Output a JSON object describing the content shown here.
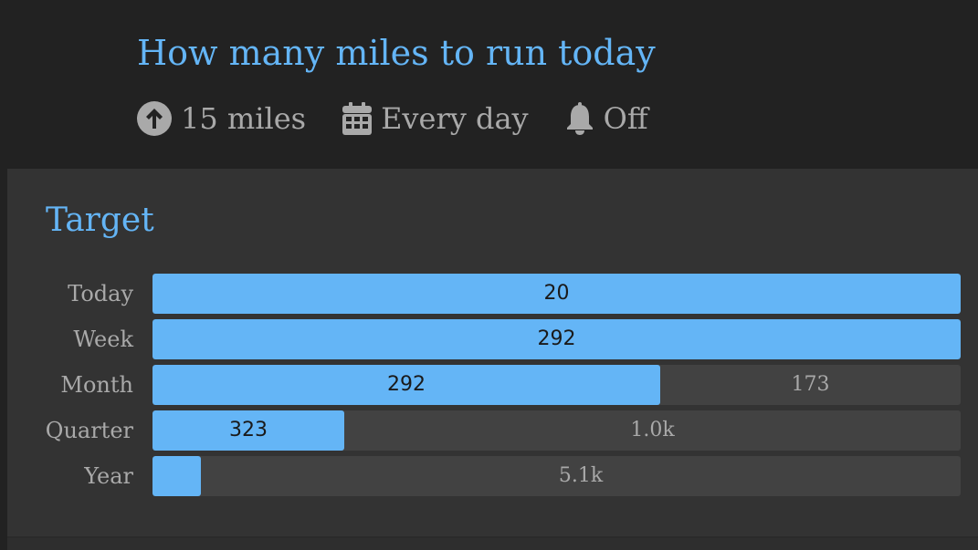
{
  "header": {
    "title": "How many miles to run today",
    "meta": [
      {
        "icon": "arrow-up-circle-icon",
        "text": "15 miles"
      },
      {
        "icon": "calendar-icon",
        "text": "Every day"
      },
      {
        "icon": "bell-icon",
        "text": "Off"
      }
    ]
  },
  "target": {
    "title": "Target",
    "rows": [
      {
        "label": "Today",
        "value": "20",
        "remaining": "",
        "progress": 1.0
      },
      {
        "label": "Week",
        "value": "292",
        "remaining": "",
        "progress": 1.0
      },
      {
        "label": "Month",
        "value": "292",
        "remaining": "173",
        "progress": 0.628
      },
      {
        "label": "Quarter",
        "value": "323",
        "remaining": "1.0k",
        "progress": 0.237
      },
      {
        "label": "Year",
        "value": "",
        "remaining": "5.1k",
        "progress": 0.06
      }
    ]
  },
  "colors": {
    "accent": "#64b5f6",
    "track": "#424242",
    "text_muted": "#a9a9a9"
  }
}
